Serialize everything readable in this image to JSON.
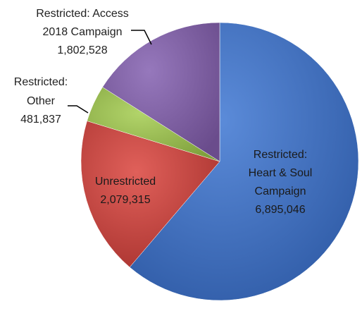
{
  "chart_data": {
    "type": "pie",
    "start_angle_deg": 0,
    "direction": "clockwise",
    "slices": [
      {
        "label": "Restricted: Heart & Soul Campaign",
        "value": 6895046,
        "label_lines": [
          "Restricted:",
          "Heart & Soul",
          "Campaign",
          "6,895,046"
        ],
        "color": "#4472C4"
      },
      {
        "label": "Unrestricted",
        "value": 2079315,
        "label_lines": [
          "Unrestricted",
          "2,079,315"
        ],
        "color": "#C0504D"
      },
      {
        "label": "Restricted: Other",
        "value": 481837,
        "label_lines": [
          "Restricted:",
          "Other",
          "481,837"
        ],
        "color": "#9BBB59"
      },
      {
        "label": "Restricted: Access 2018 Campaign",
        "value": 1802528,
        "label_lines": [
          "Restricted: Access",
          "2018 Campaign",
          "1,802,528"
        ],
        "color": "#8064A2"
      }
    ]
  }
}
